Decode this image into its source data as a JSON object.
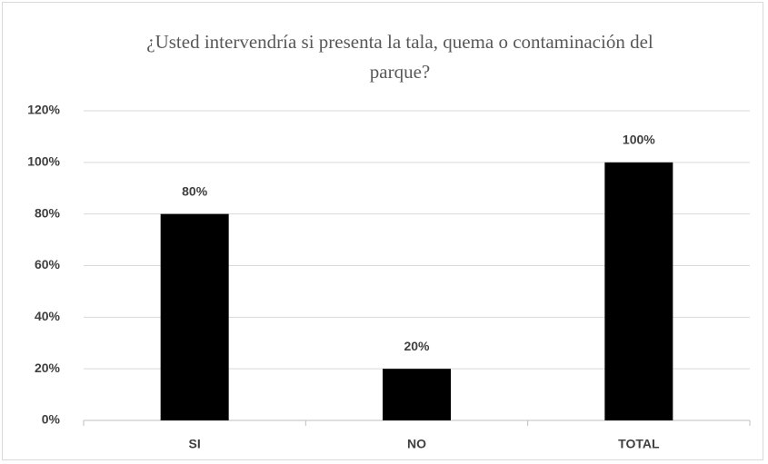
{
  "chart_data": {
    "type": "bar",
    "title": "¿Usted intervendría si presenta la tala, quema o contaminación del parque?",
    "categories": [
      "SI",
      "NO",
      "TOTAL"
    ],
    "values": [
      80,
      20,
      100
    ],
    "value_labels": [
      "80%",
      "20%",
      "100%"
    ],
    "color": "#000000",
    "ylim": [
      0,
      120
    ],
    "yticks": [
      {
        "value": 0,
        "label": "0%"
      },
      {
        "value": 20,
        "label": "20%"
      },
      {
        "value": 40,
        "label": "40%"
      },
      {
        "value": 60,
        "label": "60%"
      },
      {
        "value": 80,
        "label": "80%"
      },
      {
        "value": 100,
        "label": "100%"
      },
      {
        "value": 120,
        "label": "120%"
      }
    ],
    "grid": true
  }
}
